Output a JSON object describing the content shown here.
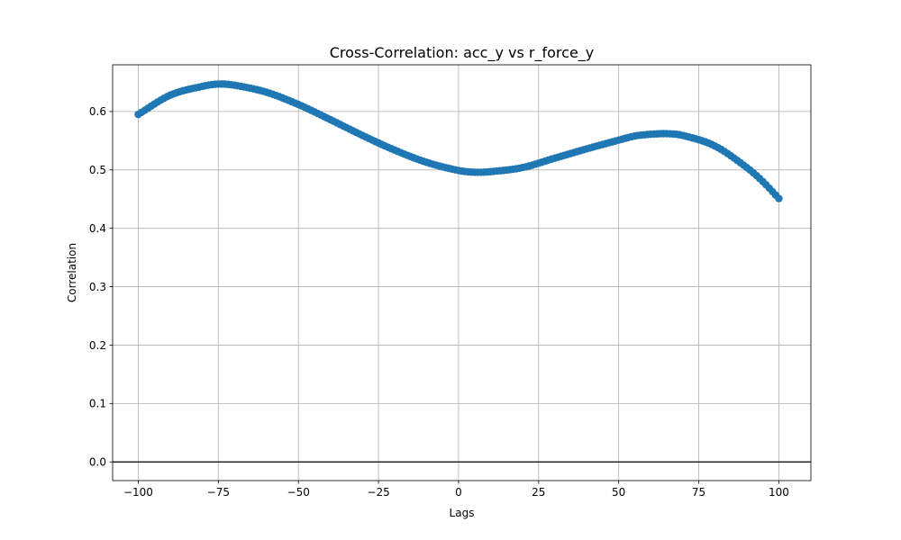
{
  "chart_data": {
    "type": "scatter",
    "title": "Cross-Correlation: acc_y vs r_force_y",
    "xlabel": "Lags",
    "ylabel": "Correlation",
    "xlim": [
      -108,
      110
    ],
    "ylim": [
      -0.032,
      0.68
    ],
    "xticks": [
      -100,
      -75,
      -50,
      -25,
      0,
      25,
      50,
      75,
      100
    ],
    "xtick_labels": [
      "−100",
      "−75",
      "−50",
      "−25",
      "0",
      "25",
      "50",
      "75",
      "100"
    ],
    "yticks": [
      0.0,
      0.1,
      0.2,
      0.3,
      0.4,
      0.5,
      0.6
    ],
    "ytick_labels": [
      "0.0",
      "0.1",
      "0.2",
      "0.3",
      "0.4",
      "0.5",
      "0.6"
    ],
    "grid": true,
    "hline": 0,
    "colors": {
      "series": "#1f77b4",
      "grid": "#b0b0b0",
      "zero_line": "#000000"
    },
    "series": [
      {
        "marker": "circle",
        "lag_start": -100,
        "lag_step": 1,
        "x": [
          -100,
          -90,
          -80,
          -75,
          -70,
          -60,
          -50,
          -40,
          -30,
          -20,
          -10,
          0,
          5,
          10,
          20,
          30,
          40,
          50,
          55,
          60,
          65,
          70,
          80,
          90,
          95,
          100
        ],
        "y": [
          0.595,
          0.628,
          0.643,
          0.647,
          0.645,
          0.633,
          0.612,
          0.586,
          0.559,
          0.534,
          0.513,
          0.499,
          0.496,
          0.497,
          0.504,
          0.52,
          0.536,
          0.551,
          0.558,
          0.561,
          0.562,
          0.559,
          0.541,
          0.504,
          0.48,
          0.451
        ]
      }
    ]
  }
}
